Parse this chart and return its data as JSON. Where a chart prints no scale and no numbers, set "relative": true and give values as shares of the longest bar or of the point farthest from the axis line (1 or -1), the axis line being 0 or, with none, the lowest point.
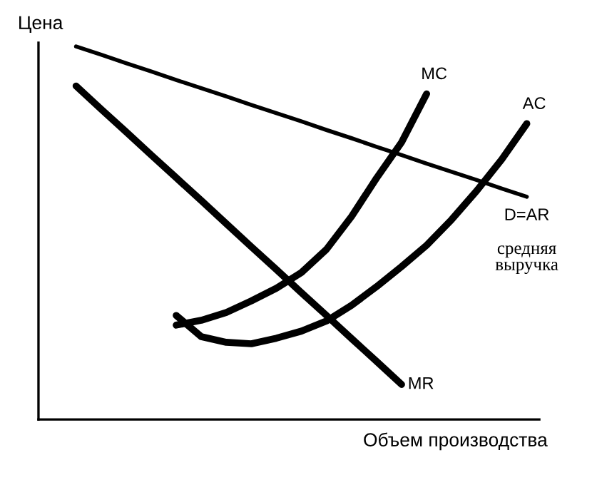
{
  "chart_data": {
    "type": "line",
    "relative": true,
    "xlabel": "Объем производства",
    "ylabel": "Цена",
    "legend": false,
    "marker": "none",
    "line_style": "solid",
    "annotations": [
      "средняя\nвыручка"
    ],
    "categories": [
      null,
      null,
      null,
      null,
      null,
      null,
      null,
      null,
      null,
      null,
      null,
      null,
      null,
      null,
      null,
      null,
      null,
      null,
      null,
      null
    ],
    "series": [
      {
        "name": "D=AR",
        "color": "#000000",
        "values": [
          null,
          1.0,
          0.978,
          0.955,
          0.933,
          0.91,
          0.888,
          0.866,
          0.843,
          0.821,
          0.799,
          0.776,
          0.754,
          0.731,
          0.709,
          0.686,
          0.664,
          0.642,
          0.619,
          0.597
        ]
      },
      {
        "name": "MR",
        "color": "#000000",
        "values": [
          null,
          0.894,
          0.832,
          0.771,
          0.709,
          0.648,
          0.587,
          0.525,
          0.463,
          0.402,
          0.34,
          0.279,
          0.217,
          0.156,
          0.094,
          null,
          null,
          null,
          null,
          null
        ]
      },
      {
        "name": "MC",
        "color": "#000000",
        "values": [
          null,
          null,
          null,
          null,
          null,
          0.253,
          0.266,
          0.287,
          0.318,
          0.352,
          0.394,
          0.456,
          0.544,
          0.647,
          0.743,
          0.873,
          null,
          null,
          null,
          null
        ]
      },
      {
        "name": "AC",
        "color": "#000000",
        "values": [
          null,
          null,
          null,
          null,
          null,
          0.279,
          0.222,
          0.207,
          0.203,
          0.218,
          0.237,
          0.264,
          0.306,
          0.356,
          0.41,
          0.467,
          0.536,
          0.613,
          0.697,
          0.793
        ]
      }
    ]
  }
}
